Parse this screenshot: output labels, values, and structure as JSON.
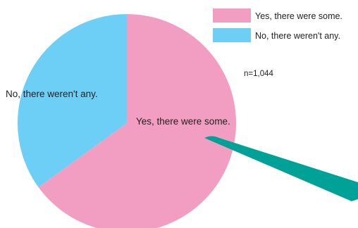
{
  "chart_data": {
    "type": "pie",
    "note": "n=1,044",
    "slices": [
      {
        "label": "Yes, there were some.",
        "value": 65,
        "color": "#f29ec2"
      },
      {
        "label": "No, there weren't any.",
        "value": 35,
        "color": "#6dcff6"
      }
    ],
    "legend": {
      "placement": "top-right",
      "items": [
        {
          "label": "Yes, there were some.",
          "color": "#f29ec2"
        },
        {
          "label": "No, there weren't any.",
          "color": "#6dcff6"
        }
      ]
    },
    "callout_color": "#00a196"
  }
}
